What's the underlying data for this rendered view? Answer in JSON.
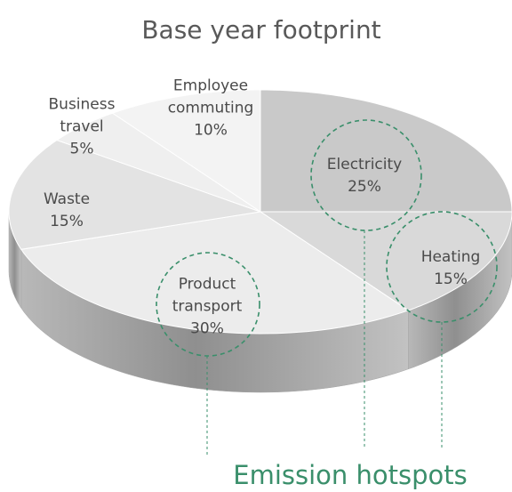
{
  "chart_data": {
    "type": "pie",
    "title": "Base year footprint",
    "categories": [
      "Electricity",
      "Heating",
      "Product transport",
      "Waste",
      "Business travel",
      "Employee commuting"
    ],
    "values": [
      25,
      15,
      30,
      15,
      5,
      10
    ],
    "value_labels": [
      "25%",
      "15%",
      "30%",
      "15%",
      "5%",
      "10%"
    ],
    "colors": [
      "#c9c9c9",
      "#d9d9d9",
      "#ececec",
      "#e3e3e3",
      "#efefef",
      "#f3f3f3"
    ],
    "annotation": "Emission hotspots"
  }
}
